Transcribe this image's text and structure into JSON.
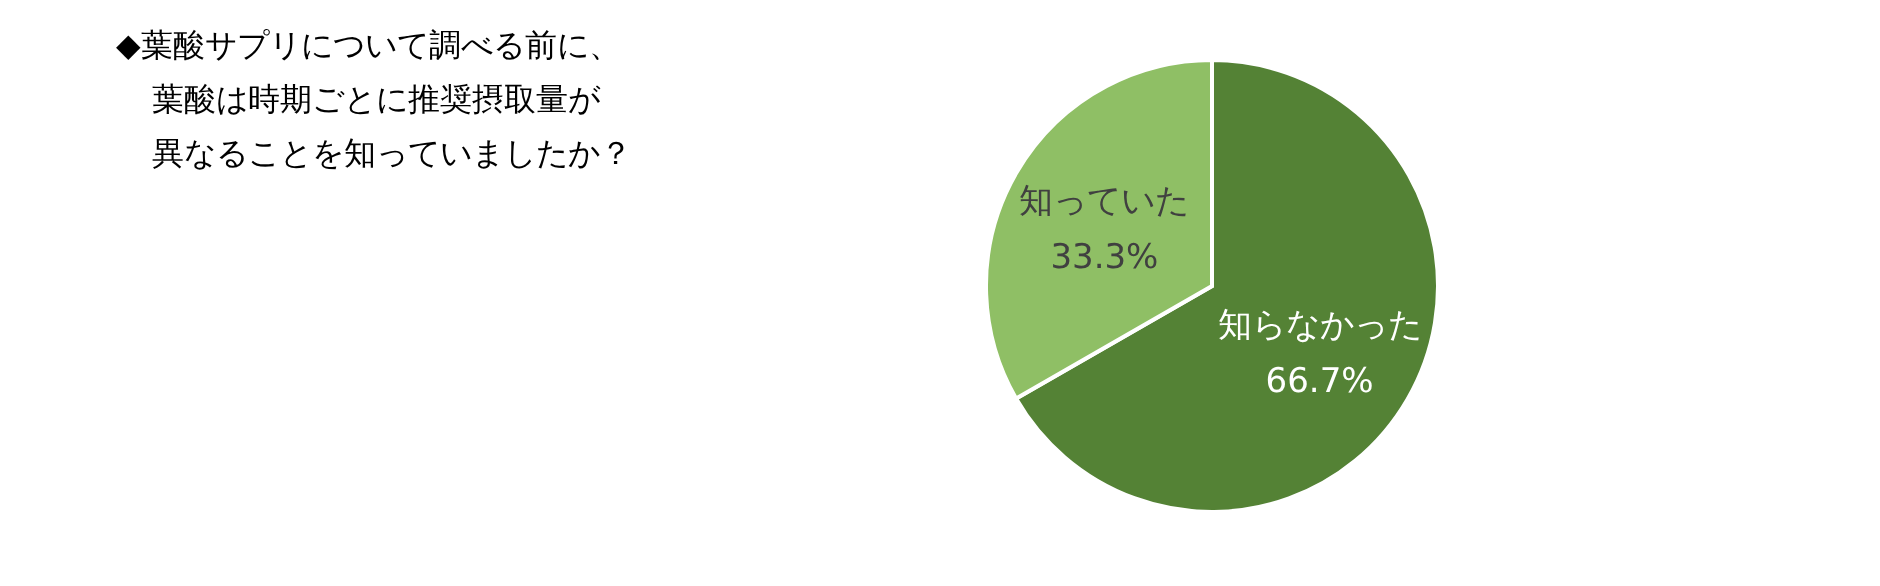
{
  "chart_data": {
    "type": "pie",
    "title": "◆葉酸サプリについて調べる前に、葉酸は時期ごとに推奨摂取量が異なることを知っていましたか？",
    "categories": [
      "知らなかった",
      "知っていた"
    ],
    "values": [
      66.7,
      33.3
    ],
    "value_labels": [
      "66.7%",
      "33.3%"
    ],
    "colors": [
      "#548235",
      "#8fbf65"
    ],
    "legend": false
  }
}
